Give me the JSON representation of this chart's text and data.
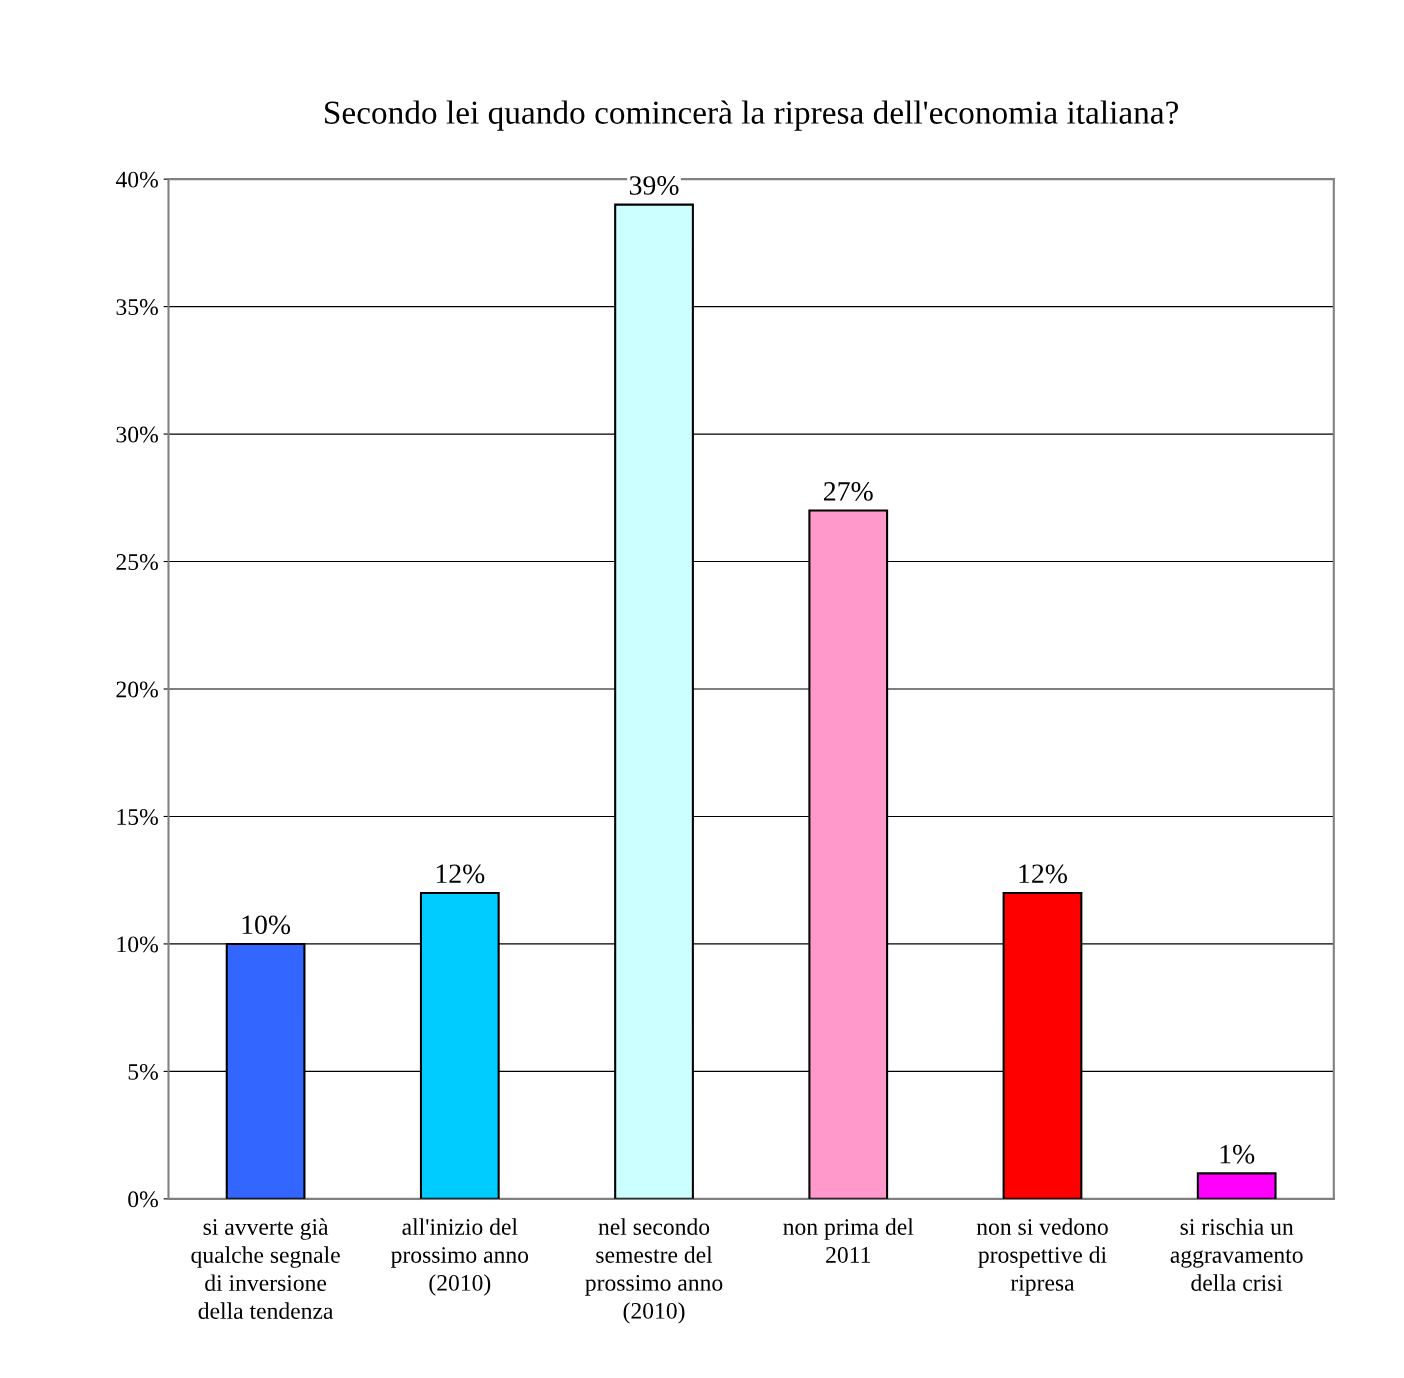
{
  "chart_data": {
    "type": "bar",
    "title": "Secondo lei quando comincerà la ripresa dell'economia italiana?",
    "categories": [
      "si avverte già qualche segnale di inversione della tendenza",
      "all'inizio del prossimo anno (2010)",
      "nel secondo semestre del prossimo anno (2010)",
      "non prima del 2011",
      "non si vedono prospettive di ripresa",
      "si rischia un aggravamento della crisi"
    ],
    "values": [
      10,
      12,
      39,
      27,
      12,
      1
    ],
    "colors": [
      "#3366ff",
      "#00ccff",
      "#ccffff",
      "#ff99cc",
      "#ff0000",
      "#ff00ff"
    ],
    "ylim": [
      0,
      40
    ],
    "yticks": [
      {
        "value": 0,
        "label": "0%"
      },
      {
        "value": 5,
        "label": "5%"
      },
      {
        "value": 10,
        "label": "10%"
      },
      {
        "value": 15,
        "label": "15%"
      },
      {
        "value": 20,
        "label": "20%"
      },
      {
        "value": 25,
        "label": "25%"
      },
      {
        "value": 30,
        "label": "30%"
      },
      {
        "value": 35,
        "label": "35%"
      },
      {
        "value": 40,
        "label": "40%"
      }
    ],
    "value_labels": [
      "10%",
      "12%",
      "39%",
      "27%",
      "12%",
      "1%"
    ],
    "grid": "y",
    "legend": false
  }
}
